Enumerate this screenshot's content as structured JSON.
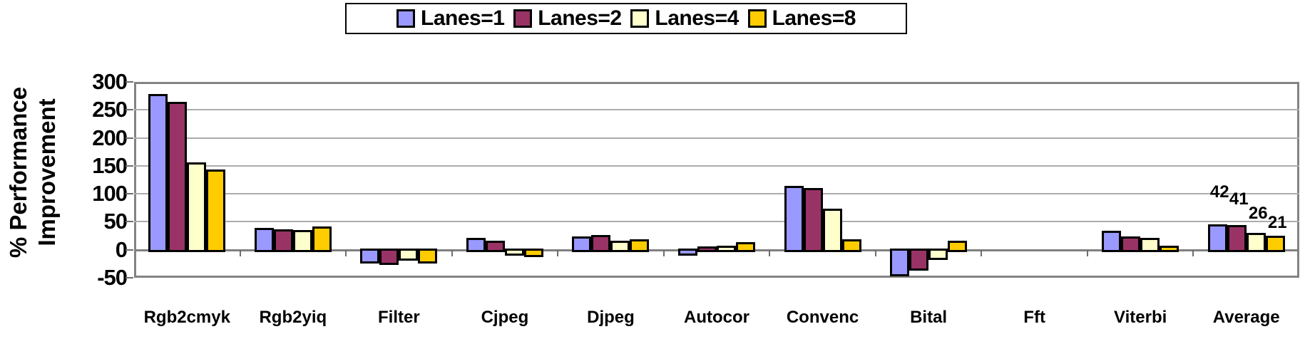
{
  "chart_data": {
    "type": "bar",
    "title": "",
    "ylabel_lines": [
      "% Performance",
      "Improvement"
    ],
    "categories": [
      "Rgb2cmyk",
      "Rgb2yiq",
      "Filter",
      "Cjpeg",
      "Djpeg",
      "Autocor",
      "Convenc",
      "Bital",
      "Fft",
      "Viterbi",
      "Average"
    ],
    "series": [
      {
        "name": "Lanes=1",
        "color": "#9999FF",
        "values": [
          275,
          35,
          -20,
          17,
          20,
          -5,
          110,
          -42,
          0,
          30,
          42
        ]
      },
      {
        "name": "Lanes=2",
        "color": "#993366",
        "values": [
          260,
          33,
          -22,
          12,
          22,
          2,
          107,
          -32,
          0,
          20,
          41
        ]
      },
      {
        "name": "Lanes=4",
        "color": "#FFFFCC",
        "values": [
          152,
          31,
          -15,
          -5,
          12,
          4,
          70,
          -13,
          0,
          18,
          26
        ]
      },
      {
        "name": "Lanes=8",
        "color": "#FFCC00",
        "values": [
          140,
          38,
          -20,
          -8,
          15,
          10,
          15,
          12,
          0,
          3,
          21
        ]
      }
    ],
    "ylim": [
      -50,
      300
    ],
    "yticks": [
      300,
      250,
      200,
      150,
      100,
      50,
      0,
      -50
    ],
    "grid": true,
    "legend_position": "top",
    "axis_color": "#808080",
    "gridline_color": "#ACACAC",
    "bar_border_color": "#000000",
    "value_labels": {
      "category": "Average",
      "values": [
        "42",
        "41",
        "26",
        "21"
      ]
    }
  }
}
